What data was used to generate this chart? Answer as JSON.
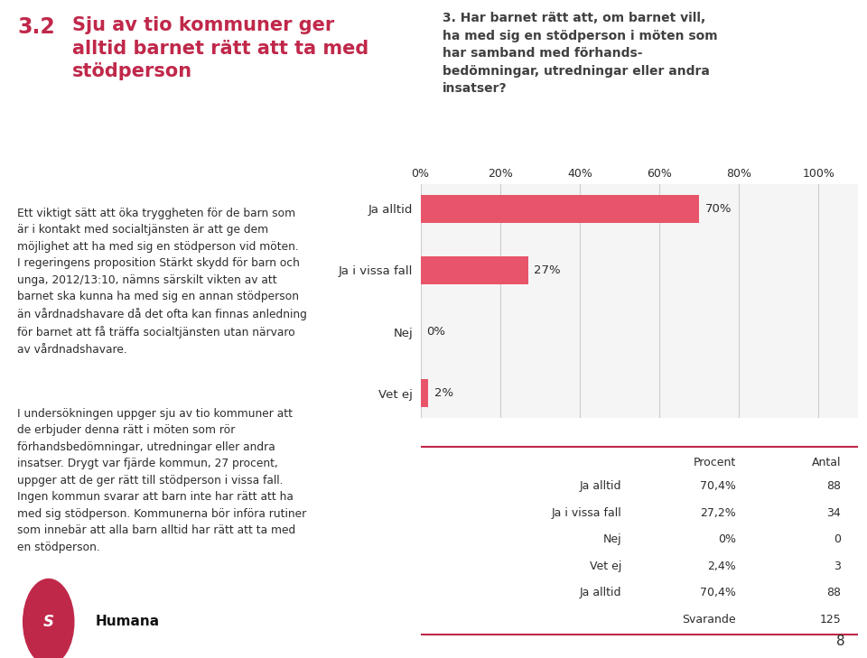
{
  "title_number": "3.2",
  "title_text": "Sju av tio kommuner ger\nalltid barnet rätt att ta med\nstödperson",
  "title_color": "#c0284a",
  "body_text1": "Ett viktigt sätt att öka tryggheten för de barn som\när i kontakt med socialtjänsten är att ge dem\nmöjlighet att ha med sig en stödperson vid möten.\nI regeringens proposition Stärkt skydd för barn och\nunga, 2012/13:10, nämns särskilt vikten av att\nbarnet ska kunna ha med sig en annan stödperson\nän vårdnadshavare då det ofta kan finnas anledning\nför barnet att få träffa socialtjänsten utan närvaro\nav vårdnadshavare.",
  "body_text2": "I undersökningen uppger sju av tio kommuner att\nde erbjuder denna rätt i möten som rör\nförhandsbedömningar, utredningar eller andra\ninsatser. Drygt var fjärde kommun, 27 procent,\nuppger att de ger rätt till stödperson i vissa fall.\nIngen kommun svarar att barn inte har rätt att ha\nmed sig stödperson. Kommunerna bör införa rutiner\nsom innebär att alla barn alltid har rätt att ta med\nen stödperson.",
  "chart_title_line1": "3. Har barnet rätt att, om barnet vill,",
  "chart_title_line2": "ha med sig en stödperson i möten som",
  "chart_title_line3": "har samband med förhands-",
  "chart_title_line4": "bedömningar, utredningar eller andra",
  "chart_title_line5": "insatser?",
  "chart_title_color": "#404040",
  "categories": [
    "Ja alltid",
    "Ja i vissa fall",
    "Nej",
    "Vet ej"
  ],
  "values": [
    70,
    27,
    0,
    2
  ],
  "bar_color": "#e8556a",
  "bar_labels": [
    "70%",
    "27%",
    "0%",
    "2%"
  ],
  "x_ticks": [
    0,
    20,
    40,
    60,
    80,
    100
  ],
  "x_tick_labels": [
    "0%",
    "20%",
    "40%",
    "60%",
    "80%",
    "100%"
  ],
  "table_rows": [
    [
      "Ja alltid",
      "70,4%",
      "88"
    ],
    [
      "Ja i vissa fall",
      "27,2%",
      "34"
    ],
    [
      "Nej",
      "0%",
      "0"
    ],
    [
      "Vet ej",
      "2,4%",
      "3"
    ],
    [
      "Ja alltid",
      "70,4%",
      "88"
    ],
    [
      "",
      "Svarande",
      "125"
    ]
  ],
  "line_color": "#c0284a",
  "bg_color": "#ffffff",
  "chart_bg_color": "#f5f5f5",
  "page_number": "8",
  "logo_color": "#c0284a",
  "text_color": "#2c2c2c",
  "grid_color": "#cccccc"
}
